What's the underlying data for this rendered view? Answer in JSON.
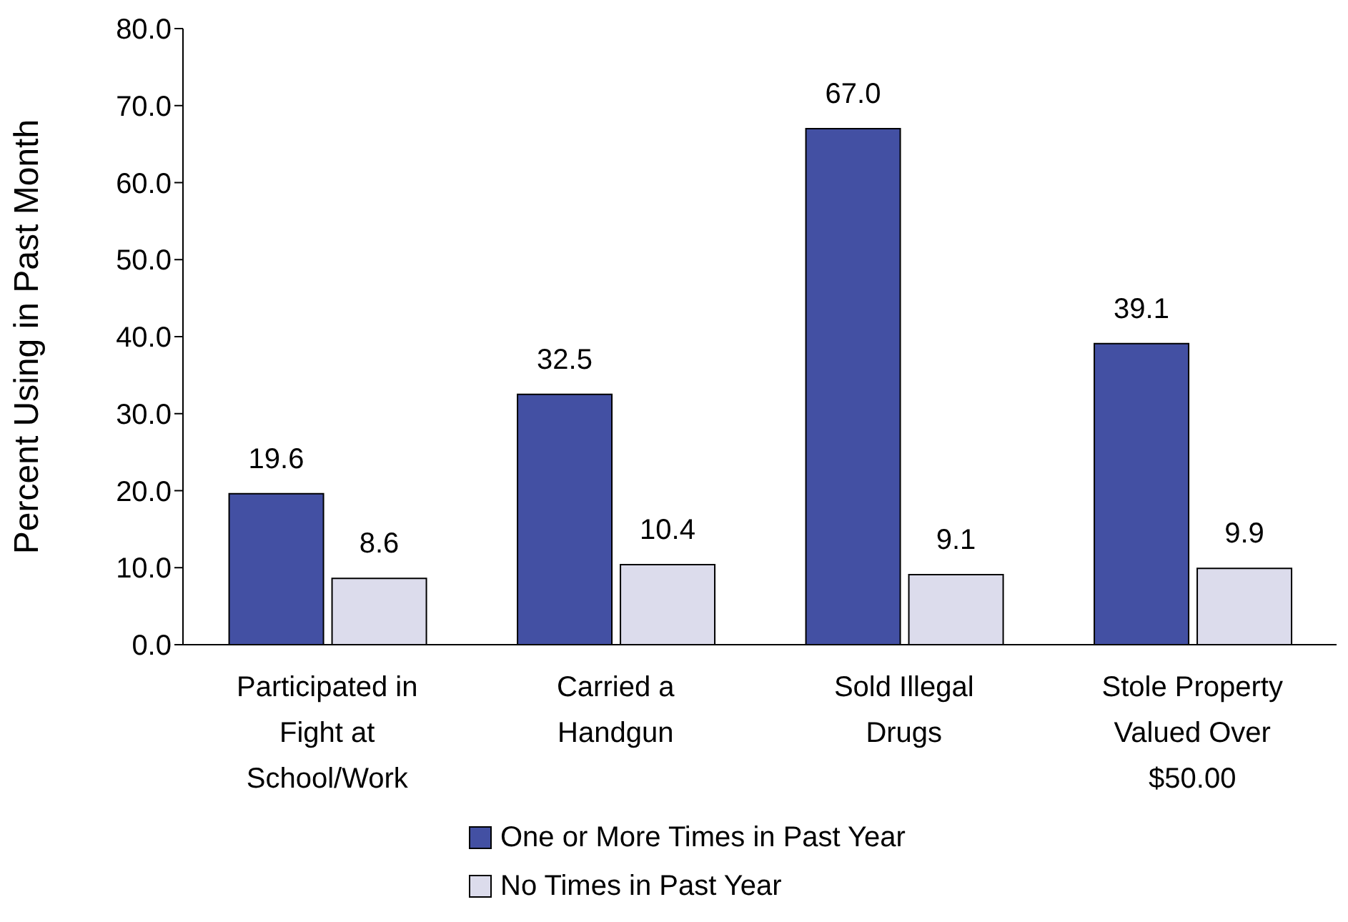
{
  "chart_data": {
    "type": "bar",
    "ylabel": "Percent Using in Past Month",
    "categories": [
      "Participated in Fight at School/Work",
      "Carried a Handgun",
      "Sold Illegal Drugs",
      "Stole Property Valued Over $50.00"
    ],
    "series": [
      {
        "name": "One or More Times in Past Year",
        "color": "#4350a3",
        "values": [
          19.6,
          32.5,
          67.0,
          39.1
        ],
        "value_labels": [
          "19.6",
          "32.5",
          "67.0",
          "39.1"
        ]
      },
      {
        "name": "No Times in Past Year",
        "color": "#dcdcec",
        "values": [
          8.6,
          10.4,
          9.1,
          9.9
        ],
        "value_labels": [
          "8.6",
          "10.4",
          "9.1",
          "9.9"
        ]
      }
    ],
    "ylim": [
      0,
      80
    ],
    "yticks": [
      {
        "value": 0,
        "label": "0.0"
      },
      {
        "value": 10,
        "label": "10.0"
      },
      {
        "value": 20,
        "label": "20.0"
      },
      {
        "value": 30,
        "label": "30.0"
      },
      {
        "value": 40,
        "label": "40.0"
      },
      {
        "value": 50,
        "label": "50.0"
      },
      {
        "value": 60,
        "label": "60.0"
      },
      {
        "value": 70,
        "label": "70.0"
      },
      {
        "value": 80,
        "label": "80.0"
      }
    ],
    "grid": false,
    "legend": "bottom"
  }
}
